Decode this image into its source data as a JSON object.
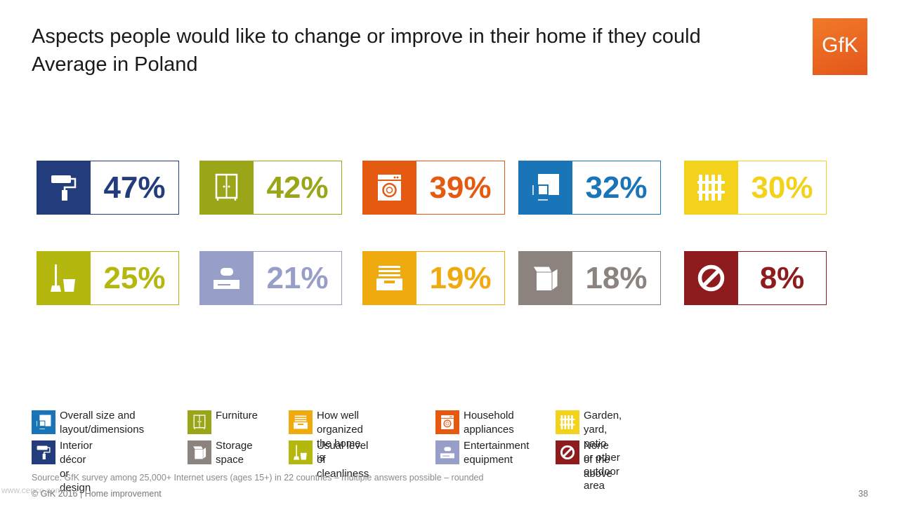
{
  "title_line1": "Aspects people would like to change or improve in their home if they could",
  "title_line2": "Average in Poland",
  "logo_text": "GfK",
  "logo_color": "#e85d20",
  "chart_data": {
    "type": "table",
    "categories": [
      "Interior décor or design",
      "Furniture",
      "Household appliances",
      "Overall size and layout/dimensions",
      "Garden, yard, patio or other outdoor area",
      "Usual level of cleanliness",
      "Entertainment equipment",
      "How well organized the home is",
      "Storage space",
      "None of the above"
    ],
    "values": [
      47,
      42,
      39,
      32,
      30,
      25,
      21,
      19,
      18,
      8
    ],
    "labels": [
      "47%",
      "42%",
      "39%",
      "32%",
      "30%",
      "25%",
      "21%",
      "19%",
      "18%",
      "8%"
    ],
    "colors": [
      "#233c7b",
      "#9aa618",
      "#e45a10",
      "#1a74b8",
      "#f2d21b",
      "#b3b70e",
      "#979fc8",
      "#efaa10",
      "#8c837e",
      "#8e1b1e"
    ],
    "icons": [
      "paint-roller-icon",
      "wardrobe-icon",
      "washing-machine-icon",
      "floor-plan-icon",
      "fence-icon",
      "mop-bucket-icon",
      "game-console-icon",
      "drawer-icon",
      "box-icon",
      "prohibited-icon"
    ]
  },
  "legend": [
    {
      "label": "Overall size and\nlayout/dimensions",
      "color": "#1a74b8",
      "icon": "floor-plan-icon"
    },
    {
      "label": "Furniture",
      "color": "#9aa618",
      "icon": "wardrobe-icon"
    },
    {
      "label": "How well organized\nthe home is",
      "color": "#efaa10",
      "icon": "drawer-icon"
    },
    {
      "label": "Household\nappliances",
      "color": "#e45a10",
      "icon": "washing-machine-icon"
    },
    {
      "label": "Garden, yard, patio\nor other outdoor area",
      "color": "#f2d21b",
      "icon": "fence-icon"
    },
    {
      "label": "Interior décor\nor design",
      "color": "#233c7b",
      "icon": "paint-roller-icon"
    },
    {
      "label": "Storage\nspace",
      "color": "#8c837e",
      "icon": "box-icon"
    },
    {
      "label": "Usual level\nof cleanliness",
      "color": "#b3b70e",
      "icon": "mop-bucket-icon"
    },
    {
      "label": "Entertainment\nequipment",
      "color": "#979fc8",
      "icon": "game-console-icon"
    },
    {
      "label": "None of the\nabove",
      "color": "#8e1b1e",
      "icon": "prohibited-icon"
    }
  ],
  "source": "Source: GfK survey among 25,000+ Internet users (ages 15+) in 22 countries – multiple answers possible – rounded",
  "footer": "© GfK 2016 | Home improvement",
  "page_number": "38",
  "watermark": "www.cenco.com"
}
